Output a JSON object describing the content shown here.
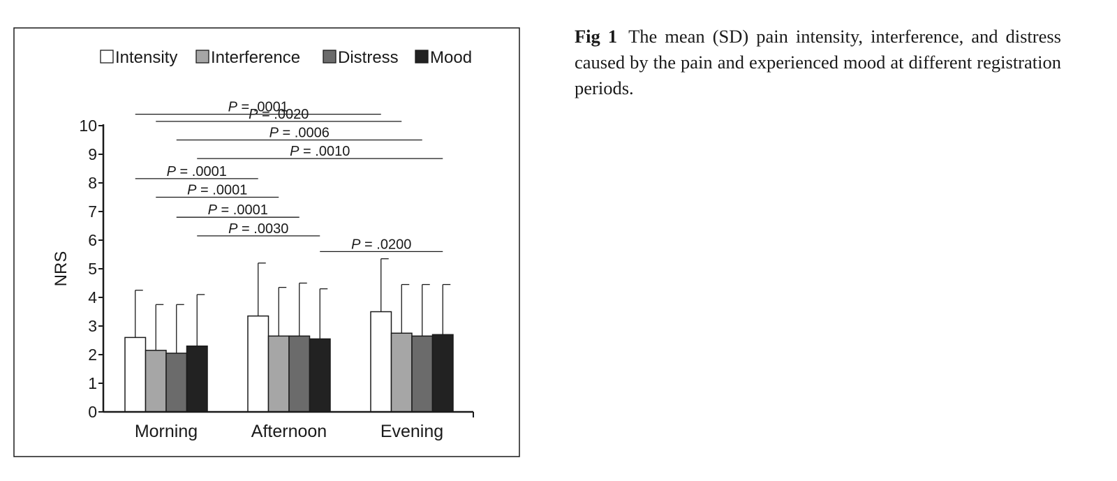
{
  "chart_data": {
    "type": "bar",
    "ylabel": "NRS",
    "xlabel": "",
    "ylim": [
      0,
      10
    ],
    "yticks": [
      "0",
      "1",
      "2",
      "3",
      "4",
      "5",
      "6",
      "7",
      "8",
      "9",
      "10"
    ],
    "categories": [
      "Morning",
      "Afternoon",
      "Evening"
    ],
    "legend_position": "top",
    "grid": false,
    "series": [
      {
        "name": "Intensity",
        "color": "#ffffff",
        "values": [
          2.6,
          3.35,
          3.5
        ],
        "sd": [
          1.65,
          1.85,
          1.85
        ]
      },
      {
        "name": "Interference",
        "color": "#a6a6a6",
        "values": [
          2.15,
          2.65,
          2.75
        ],
        "sd": [
          1.6,
          1.7,
          1.7
        ]
      },
      {
        "name": "Distress",
        "color": "#6b6b6b",
        "values": [
          2.05,
          2.65,
          2.65
        ],
        "sd": [
          1.7,
          1.85,
          1.8
        ]
      },
      {
        "name": "Mood",
        "color": "#222222",
        "values": [
          2.3,
          2.55,
          2.7
        ],
        "sd": [
          1.8,
          1.75,
          1.75
        ]
      }
    ],
    "annotations": [
      {
        "p_label": "P",
        "p_value": "= .0001",
        "from": [
          0,
          0
        ],
        "to": [
          2,
          0
        ],
        "level": 10.4
      },
      {
        "p_label": "P",
        "p_value": "= .0020",
        "from": [
          0,
          1
        ],
        "to": [
          2,
          1
        ],
        "level": 10.15
      },
      {
        "p_label": "P",
        "p_value": "= .0006",
        "from": [
          0,
          2
        ],
        "to": [
          2,
          2
        ],
        "level": 9.5
      },
      {
        "p_label": "P",
        "p_value": "= .0010",
        "from": [
          0,
          3
        ],
        "to": [
          2,
          3
        ],
        "level": 8.85
      },
      {
        "p_label": "P",
        "p_value": "= .0001",
        "from": [
          0,
          0
        ],
        "to": [
          1,
          0
        ],
        "level": 8.15
      },
      {
        "p_label": "P",
        "p_value": "= .0001",
        "from": [
          0,
          1
        ],
        "to": [
          1,
          1
        ],
        "level": 7.5
      },
      {
        "p_label": "P",
        "p_value": "= .0001",
        "from": [
          0,
          2
        ],
        "to": [
          1,
          2
        ],
        "level": 6.8
      },
      {
        "p_label": "P",
        "p_value": "= .0030",
        "from": [
          0,
          3
        ],
        "to": [
          1,
          3
        ],
        "level": 6.15
      },
      {
        "p_label": "P",
        "p_value": "= .0200",
        "from": [
          1,
          3
        ],
        "to": [
          2,
          3
        ],
        "level": 5.6
      }
    ]
  },
  "caption": {
    "label": "Fig 1",
    "text": "The mean (SD) pain intensity, interference, and distress caused by the pain and experienced mood at different registration periods."
  }
}
